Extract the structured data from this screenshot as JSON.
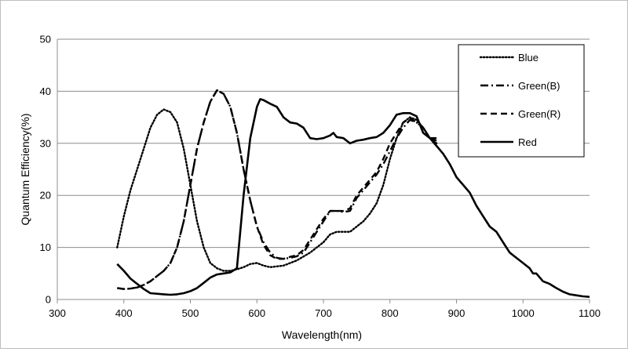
{
  "chart_data": {
    "type": "line",
    "title": "",
    "xlabel": "Wavelength(nm)",
    "ylabel": "Quantum Efficiency(%)",
    "xlim": [
      300,
      1100
    ],
    "ylim": [
      0,
      50
    ],
    "x_ticks": [
      "300",
      "400",
      "500",
      "600",
      "700",
      "800",
      "900",
      "1000",
      "1100"
    ],
    "y_ticks": [
      "0",
      "10",
      "20",
      "30",
      "40",
      "50"
    ],
    "grid": "horizontal",
    "legend_position": "top-right",
    "series": [
      {
        "name": "Blue",
        "style": "dotted",
        "points": [
          [
            390,
            10
          ],
          [
            400,
            16
          ],
          [
            410,
            21
          ],
          [
            420,
            25
          ],
          [
            430,
            29
          ],
          [
            440,
            33
          ],
          [
            450,
            35.5
          ],
          [
            460,
            36.5
          ],
          [
            470,
            36
          ],
          [
            480,
            34
          ],
          [
            490,
            29
          ],
          [
            500,
            22
          ],
          [
            510,
            15
          ],
          [
            520,
            10
          ],
          [
            530,
            7
          ],
          [
            540,
            6
          ],
          [
            550,
            5.5
          ],
          [
            560,
            5.5
          ],
          [
            570,
            5.8
          ],
          [
            580,
            6.2
          ],
          [
            590,
            6.8
          ],
          [
            600,
            7
          ],
          [
            610,
            6.5
          ],
          [
            620,
            6.2
          ],
          [
            640,
            6.5
          ],
          [
            660,
            7.5
          ],
          [
            680,
            9
          ],
          [
            700,
            11
          ],
          [
            710,
            12.5
          ],
          [
            720,
            13
          ],
          [
            740,
            13
          ],
          [
            750,
            14
          ],
          [
            760,
            15
          ],
          [
            770,
            16.5
          ],
          [
            780,
            18.5
          ],
          [
            790,
            22
          ],
          [
            800,
            27
          ],
          [
            810,
            31
          ],
          [
            820,
            34
          ],
          [
            830,
            35
          ],
          [
            840,
            34.5
          ],
          [
            850,
            33
          ],
          [
            860,
            31
          ],
          [
            870,
            30
          ]
        ]
      },
      {
        "name": "Green(B)",
        "style": "dash-dot",
        "points": [
          [
            390,
            2.2
          ],
          [
            400,
            2
          ],
          [
            410,
            2.1
          ],
          [
            420,
            2.3
          ],
          [
            430,
            2.8
          ],
          [
            440,
            3.5
          ],
          [
            450,
            4.5
          ],
          [
            460,
            5.5
          ],
          [
            470,
            7
          ],
          [
            480,
            10
          ],
          [
            490,
            15
          ],
          [
            500,
            22
          ],
          [
            510,
            29
          ],
          [
            520,
            34
          ],
          [
            530,
            38
          ],
          [
            540,
            40.2
          ],
          [
            550,
            39.5
          ],
          [
            560,
            37
          ],
          [
            570,
            32
          ],
          [
            580,
            25
          ],
          [
            590,
            19
          ],
          [
            600,
            14
          ],
          [
            610,
            11
          ],
          [
            620,
            9
          ],
          [
            630,
            8
          ],
          [
            640,
            7.8
          ],
          [
            650,
            8
          ],
          [
            660,
            8.3
          ],
          [
            670,
            9
          ],
          [
            680,
            11
          ],
          [
            690,
            13
          ],
          [
            700,
            15
          ],
          [
            710,
            17
          ],
          [
            720,
            17
          ],
          [
            730,
            16.8
          ],
          [
            740,
            17
          ],
          [
            750,
            19.5
          ],
          [
            760,
            21
          ],
          [
            770,
            22.5
          ],
          [
            780,
            24
          ],
          [
            790,
            26
          ],
          [
            800,
            28.5
          ],
          [
            810,
            31
          ],
          [
            820,
            33
          ],
          [
            830,
            34.5
          ],
          [
            840,
            34
          ],
          [
            850,
            33
          ],
          [
            860,
            31
          ],
          [
            870,
            31
          ]
        ]
      },
      {
        "name": "Green(R)",
        "style": "dashed",
        "points": [
          [
            390,
            2.2
          ],
          [
            400,
            2
          ],
          [
            410,
            2.1
          ],
          [
            420,
            2.3
          ],
          [
            430,
            2.8
          ],
          [
            440,
            3.5
          ],
          [
            450,
            4.5
          ],
          [
            460,
            5.5
          ],
          [
            470,
            7
          ],
          [
            480,
            10
          ],
          [
            490,
            15
          ],
          [
            500,
            22
          ],
          [
            510,
            29
          ],
          [
            520,
            34
          ],
          [
            530,
            38
          ],
          [
            540,
            40.2
          ],
          [
            550,
            39.5
          ],
          [
            560,
            37
          ],
          [
            570,
            32
          ],
          [
            580,
            25
          ],
          [
            590,
            19
          ],
          [
            600,
            14
          ],
          [
            610,
            10.5
          ],
          [
            620,
            8.5
          ],
          [
            630,
            7.8
          ],
          [
            640,
            7.8
          ],
          [
            650,
            8.2
          ],
          [
            660,
            8.5
          ],
          [
            670,
            9.5
          ],
          [
            680,
            11.5
          ],
          [
            690,
            13.5
          ],
          [
            700,
            15.5
          ],
          [
            710,
            17
          ],
          [
            720,
            17
          ],
          [
            730,
            17
          ],
          [
            740,
            17.5
          ],
          [
            750,
            20
          ],
          [
            760,
            21.5
          ],
          [
            770,
            23
          ],
          [
            780,
            24.5
          ],
          [
            790,
            27
          ],
          [
            800,
            30
          ],
          [
            810,
            32
          ],
          [
            820,
            34
          ],
          [
            830,
            34.8
          ],
          [
            840,
            34
          ],
          [
            850,
            33
          ],
          [
            860,
            31
          ],
          [
            870,
            30.5
          ]
        ]
      },
      {
        "name": "Red",
        "style": "solid",
        "points": [
          [
            390,
            6.8
          ],
          [
            400,
            5.5
          ],
          [
            410,
            4
          ],
          [
            420,
            3
          ],
          [
            430,
            2
          ],
          [
            440,
            1.2
          ],
          [
            460,
            1
          ],
          [
            470,
            0.9
          ],
          [
            480,
            1
          ],
          [
            490,
            1.2
          ],
          [
            500,
            1.6
          ],
          [
            510,
            2.2
          ],
          [
            520,
            3.2
          ],
          [
            530,
            4.2
          ],
          [
            540,
            4.8
          ],
          [
            550,
            5
          ],
          [
            560,
            5.2
          ],
          [
            570,
            6
          ],
          [
            580,
            20
          ],
          [
            590,
            31
          ],
          [
            600,
            37
          ],
          [
            605,
            38.5
          ],
          [
            610,
            38.3
          ],
          [
            620,
            37.6
          ],
          [
            630,
            37
          ],
          [
            640,
            35
          ],
          [
            650,
            34
          ],
          [
            660,
            33.8
          ],
          [
            670,
            33
          ],
          [
            680,
            31
          ],
          [
            690,
            30.8
          ],
          [
            700,
            31
          ],
          [
            710,
            31.5
          ],
          [
            715,
            32
          ],
          [
            720,
            31.2
          ],
          [
            730,
            31
          ],
          [
            740,
            30
          ],
          [
            750,
            30.5
          ],
          [
            760,
            30.7
          ],
          [
            770,
            31
          ],
          [
            780,
            31.2
          ],
          [
            790,
            32
          ],
          [
            800,
            33.5
          ],
          [
            810,
            35.5
          ],
          [
            820,
            35.8
          ],
          [
            830,
            35.8
          ],
          [
            840,
            35.2
          ],
          [
            850,
            32
          ],
          [
            860,
            31
          ],
          [
            870,
            29.5
          ],
          [
            880,
            28
          ],
          [
            890,
            26
          ],
          [
            900,
            23.5
          ],
          [
            910,
            22
          ],
          [
            920,
            20.5
          ],
          [
            930,
            18
          ],
          [
            940,
            16
          ],
          [
            950,
            14
          ],
          [
            960,
            13
          ],
          [
            970,
            11
          ],
          [
            980,
            9
          ],
          [
            990,
            8
          ],
          [
            1000,
            7
          ],
          [
            1010,
            6
          ],
          [
            1015,
            5
          ],
          [
            1020,
            5
          ],
          [
            1030,
            3.5
          ],
          [
            1040,
            3
          ],
          [
            1050,
            2.2
          ],
          [
            1060,
            1.5
          ],
          [
            1070,
            1
          ],
          [
            1080,
            0.8
          ],
          [
            1090,
            0.6
          ],
          [
            1100,
            0.5
          ]
        ]
      }
    ]
  }
}
